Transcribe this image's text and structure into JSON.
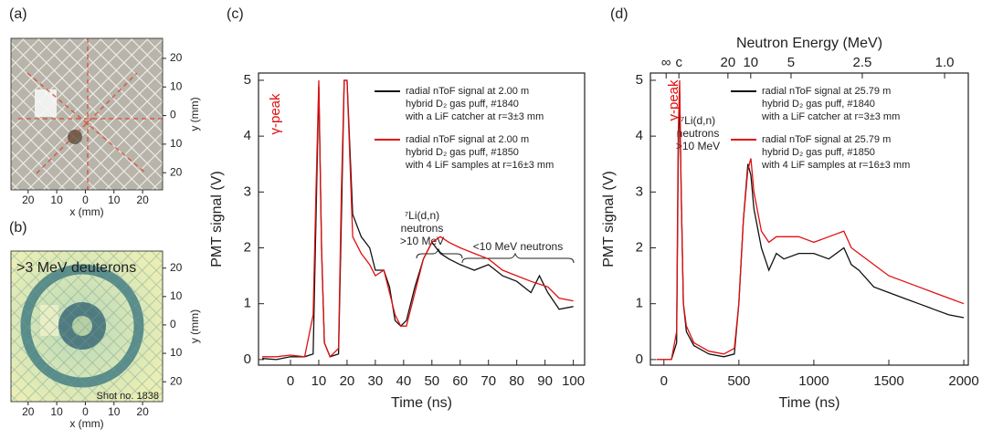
{
  "chart_data": [
    {
      "type": "image",
      "panel_label": "(a)",
      "xlabel": "x (mm)",
      "ylabel": "y (mm)",
      "xlim": [
        -26,
        27
      ],
      "ylim": [
        -26,
        27
      ],
      "xticks": [
        {
          "value": -20,
          "label": "20"
        },
        {
          "value": -10,
          "label": "10"
        },
        0,
        10,
        20
      ],
      "yticks": [
        {
          "value": -20,
          "label": "20"
        },
        {
          "value": -10,
          "label": "10"
        },
        0,
        10,
        20
      ]
    },
    {
      "type": "image",
      "panel_label": "(b)",
      "xlabel": "x (mm)",
      "ylabel": "y (mm)",
      "texts": [
        ">3 MeV deuterons",
        "Shot no. 1838"
      ],
      "xlim": [
        -26,
        27
      ],
      "ylim": [
        -27,
        26
      ],
      "xticks": [
        {
          "value": -20,
          "label": "20"
        },
        {
          "value": -10,
          "label": "10"
        },
        0,
        10,
        20
      ],
      "yticks": [
        {
          "value": -20,
          "label": "20"
        },
        {
          "value": -10,
          "label": "10"
        },
        0,
        10,
        20
      ]
    },
    {
      "type": "line",
      "panel_label": "(c)",
      "xlabel": "Time (ns)",
      "ylabel": "PMT signal (V)",
      "annotations": [
        "γ-peak",
        "⁷Li(d,n)",
        "neutrons",
        ">10 MeV",
        "<10 MeV neutrons"
      ],
      "xlim": [
        -11.3,
        104
      ],
      "ylim": [
        -0.1,
        5.13
      ],
      "xticks": [
        0,
        10,
        20,
        30,
        40,
        50,
        60,
        70,
        80,
        90,
        100
      ],
      "yticks": [
        0,
        1,
        2,
        3,
        4,
        5
      ],
      "x": [
        -10,
        -5,
        0,
        5,
        8,
        9,
        10,
        11,
        12,
        14,
        17,
        18,
        19,
        20,
        22,
        25,
        28,
        30,
        33,
        35,
        37,
        39,
        41,
        44,
        47,
        50,
        53,
        56,
        60,
        65,
        70,
        75,
        80,
        85,
        88,
        91,
        95,
        100
      ],
      "series": [
        {
          "name": [
            "radial nToF signal at 2.00 m",
            "hybrid D₂ gas puff, #1840",
            "with a LiF catcher at r=3±3  mm"
          ],
          "color": "#111111",
          "values": [
            0.02,
            0.0,
            0.05,
            0.05,
            0.1,
            2.5,
            4.9,
            2,
            0.3,
            0.05,
            0.1,
            2.5,
            5,
            5,
            2.6,
            2.2,
            2.0,
            1.6,
            1.6,
            1.3,
            0.7,
            0.6,
            0.7,
            1.3,
            1.8,
            2.1,
            1.9,
            1.8,
            1.7,
            1.6,
            1.7,
            1.5,
            1.4,
            1.2,
            1.5,
            1.2,
            0.9,
            0.95
          ]
        },
        {
          "name": [
            "radial nToF signal at 2.00 m",
            "hybrid D₂ gas puff, #1850",
            "with 4 LiF samples at r=16±3 mm"
          ],
          "color": "#e01010",
          "values": [
            0.05,
            0.05,
            0.08,
            0.05,
            0.8,
            3,
            5,
            2,
            0.3,
            0.05,
            0.2,
            3,
            5,
            5,
            2.2,
            1.9,
            1.7,
            1.5,
            1.6,
            1.2,
            0.8,
            0.6,
            0.6,
            1.2,
            1.8,
            2.1,
            2.2,
            2.1,
            2.0,
            1.9,
            1.8,
            1.6,
            1.5,
            1.4,
            1.35,
            1.3,
            1.1,
            1.05
          ]
        }
      ]
    },
    {
      "type": "line",
      "panel_label": "(d)",
      "xlabel": "Time (ns)",
      "ylabel": "PMT signal (V)",
      "x2label": "Neutron Energy (MeV)",
      "annotations": [
        "γ-peak",
        "⁷Li(d,n)",
        "neutrons",
        ">10 MeV"
      ],
      "xlim": [
        -90,
        2030
      ],
      "ylim": [
        -0.1,
        5.13
      ],
      "xticks": [
        0,
        500,
        1000,
        1500,
        2000
      ],
      "yticks": [
        0,
        1,
        2,
        3,
        4,
        5
      ],
      "top_ticks": [
        {
          "label": "∞",
          "x": 15
        },
        {
          "label": "c",
          "x": 100
        },
        {
          "label": "20",
          "x": 427
        },
        {
          "label": "10",
          "x": 579
        },
        {
          "label": "5",
          "x": 848
        },
        {
          "label": "2.5",
          "x": 1323
        },
        {
          "label": "1.0",
          "x": 1872
        }
      ],
      "x": [
        -50,
        50,
        85,
        95,
        105,
        115,
        130,
        150,
        200,
        300,
        400,
        470,
        500,
        530,
        560,
        580,
        600,
        650,
        700,
        750,
        800,
        900,
        1000,
        1100,
        1200,
        1250,
        1300,
        1400,
        1500,
        1600,
        1700,
        1800,
        1900,
        2000
      ],
      "series": [
        {
          "name": [
            "radial nToF signal at 25.79 m",
            "hybrid D₂ gas puff, #1840",
            "with a LiF catcher at r=3±3  mm"
          ],
          "color": "#111111",
          "values": [
            0,
            0,
            0.3,
            3.5,
            4.8,
            3,
            1,
            0.5,
            0.25,
            0.1,
            0.05,
            0.1,
            1.0,
            2.5,
            3.5,
            3.3,
            2.7,
            2.0,
            1.6,
            1.9,
            1.8,
            1.9,
            1.9,
            1.8,
            2.0,
            1.7,
            1.6,
            1.3,
            1.2,
            1.1,
            1.0,
            0.9,
            0.8,
            0.75
          ]
        },
        {
          "name": [
            "radial nToF signal at 25.79 m",
            "hybrid D₂ gas puff, #1850",
            "with 4 LiF samples at r=16±3 mm"
          ],
          "color": "#e01010",
          "values": [
            0,
            0,
            0.5,
            4,
            5,
            3,
            1,
            0.6,
            0.3,
            0.15,
            0.1,
            0.2,
            1.0,
            2.5,
            3.4,
            3.6,
            3.0,
            2.3,
            2.1,
            2.2,
            2.2,
            2.2,
            2.1,
            2.2,
            2.3,
            2.0,
            1.9,
            1.7,
            1.5,
            1.4,
            1.3,
            1.2,
            1.1,
            1.0
          ]
        }
      ]
    }
  ]
}
